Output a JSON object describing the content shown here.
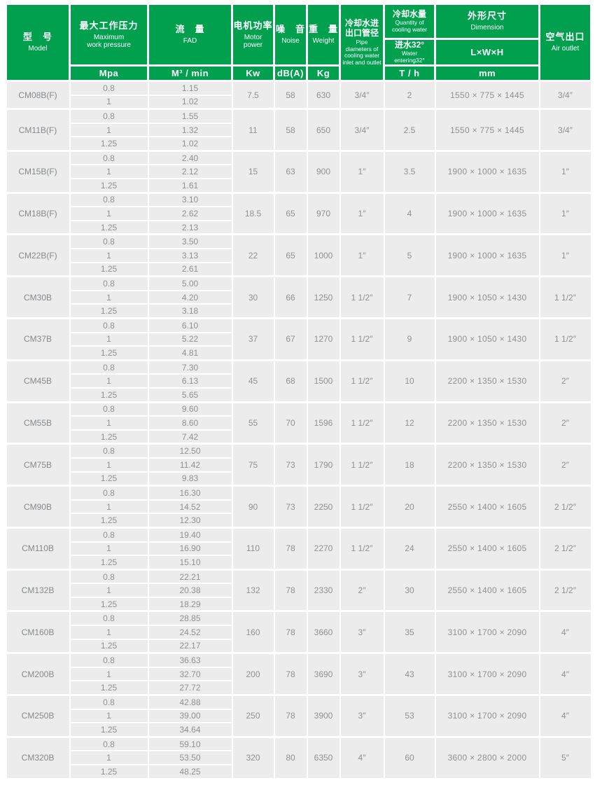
{
  "colors": {
    "header_green": "#00A04E",
    "row_background": "#ECECEC",
    "body_text": "#8E9092",
    "header_text": "#FFFFFF"
  },
  "table": {
    "header": {
      "model": {
        "zh": "型　号",
        "en": "Model"
      },
      "pressure": {
        "zh": "最大工作压力",
        "en": "Maximum\nwork pressure",
        "unit": "Mpa"
      },
      "fad": {
        "zh": "流　量",
        "en": "FAD",
        "unit": "M³ / min"
      },
      "power": {
        "zh": "电机功率",
        "en": "Motor\npower",
        "unit": "Kw"
      },
      "noise": {
        "zh": "噪　音",
        "en": "Noise",
        "unit": "dB(A)"
      },
      "weight": {
        "zh": "重　量",
        "en": "Weight",
        "unit": "Kg"
      },
      "pipe": {
        "zh": "冷却水进\n出口管径",
        "en": "Pipe\ndiameters of\ncooling water\ninlet and outlet"
      },
      "cooling": {
        "zh": "冷却水量",
        "en": "Quantity of\ncooling water",
        "mid_zh": "进水32°",
        "mid_en": "Water\nentering32°",
        "unit": "T / h"
      },
      "dimension": {
        "zh": "外形尺寸",
        "en": "Dimension",
        "mid": "L×W×H",
        "unit": "mm"
      },
      "air": {
        "zh": "空气出口",
        "en": "Air outlet"
      }
    },
    "rows": [
      {
        "model": "CM08B(F)",
        "entries": [
          {
            "pressure": "0.8",
            "fad": "1.15"
          },
          {
            "pressure": "1",
            "fad": "1.02"
          }
        ],
        "power": "7.5",
        "noise": "58",
        "weight": "630",
        "pipe": "3/4″",
        "cooling": "2",
        "dimension": "1550 × 775 × 1445",
        "air": "3/4″"
      },
      {
        "model": "CM11B(F)",
        "entries": [
          {
            "pressure": "0.8",
            "fad": "1.55"
          },
          {
            "pressure": "1",
            "fad": "1.32"
          },
          {
            "pressure": "1.25",
            "fad": "1.02"
          }
        ],
        "power": "11",
        "noise": "58",
        "weight": "650",
        "pipe": "3/4″",
        "cooling": "2.5",
        "dimension": "1550 × 775 × 1445",
        "air": "3/4″"
      },
      {
        "model": "CM15B(F)",
        "entries": [
          {
            "pressure": "0.8",
            "fad": "2.40"
          },
          {
            "pressure": "1",
            "fad": "2.12"
          },
          {
            "pressure": "1.25",
            "fad": "1.61"
          }
        ],
        "power": "15",
        "noise": "63",
        "weight": "900",
        "pipe": "1″",
        "cooling": "3.5",
        "dimension": "1900 × 1000 × 1635",
        "air": "1″"
      },
      {
        "model": "CM18B(F)",
        "entries": [
          {
            "pressure": "0.8",
            "fad": "3.10"
          },
          {
            "pressure": "1",
            "fad": "2.62"
          },
          {
            "pressure": "1.25",
            "fad": "2.13"
          }
        ],
        "power": "18.5",
        "noise": "65",
        "weight": "970",
        "pipe": "1″",
        "cooling": "4",
        "dimension": "1900 × 1000 × 1635",
        "air": "1″"
      },
      {
        "model": "CM22B(F)",
        "entries": [
          {
            "pressure": "0.8",
            "fad": "3.50"
          },
          {
            "pressure": "1",
            "fad": "3.13"
          },
          {
            "pressure": "1.25",
            "fad": "2.61"
          }
        ],
        "power": "22",
        "noise": "65",
        "weight": "1000",
        "pipe": "1″",
        "cooling": "5",
        "dimension": "1900 × 1000 × 1635",
        "air": "1″"
      },
      {
        "model": "CM30B",
        "entries": [
          {
            "pressure": "0.8",
            "fad": "5.00"
          },
          {
            "pressure": "1",
            "fad": "4.20"
          },
          {
            "pressure": "1.25",
            "fad": "3.18"
          }
        ],
        "power": "30",
        "noise": "66",
        "weight": "1250",
        "pipe": "1 1/2″",
        "cooling": "7",
        "dimension": "1900 × 1050 × 1430",
        "air": "1 1/2″"
      },
      {
        "model": "CM37B",
        "entries": [
          {
            "pressure": "0.8",
            "fad": "6.10"
          },
          {
            "pressure": "1",
            "fad": "5.22"
          },
          {
            "pressure": "1.25",
            "fad": "4.81"
          }
        ],
        "power": "37",
        "noise": "67",
        "weight": "1270",
        "pipe": "1 1/2″",
        "cooling": "9",
        "dimension": "1900 × 1050 × 1430",
        "air": "1 1/2″"
      },
      {
        "model": "CM45B",
        "entries": [
          {
            "pressure": "0.8",
            "fad": "7.30"
          },
          {
            "pressure": "1",
            "fad": "6.13"
          },
          {
            "pressure": "1.25",
            "fad": "5.65"
          }
        ],
        "power": "45",
        "noise": "68",
        "weight": "1500",
        "pipe": "1 1/2″",
        "cooling": "10",
        "dimension": "2200 × 1350 × 1530",
        "air": "2″"
      },
      {
        "model": "CM55B",
        "entries": [
          {
            "pressure": "0.8",
            "fad": "9.60"
          },
          {
            "pressure": "1",
            "fad": "8.60"
          },
          {
            "pressure": "1.25",
            "fad": "7.42"
          }
        ],
        "power": "55",
        "noise": "70",
        "weight": "1596",
        "pipe": "1 1/2″",
        "cooling": "12",
        "dimension": "2200 × 1350 × 1530",
        "air": "2″"
      },
      {
        "model": "CM75B",
        "entries": [
          {
            "pressure": "0.8",
            "fad": "12.50"
          },
          {
            "pressure": "1",
            "fad": "11.42"
          },
          {
            "pressure": "1.25",
            "fad": "9.83"
          }
        ],
        "power": "75",
        "noise": "73",
        "weight": "1790",
        "pipe": "1 1/2″",
        "cooling": "18",
        "dimension": "2200 × 1350 × 1530",
        "air": "2″"
      },
      {
        "model": "CM90B",
        "entries": [
          {
            "pressure": "0.8",
            "fad": "16.30"
          },
          {
            "pressure": "1",
            "fad": "14.52"
          },
          {
            "pressure": "1.25",
            "fad": "12.30"
          }
        ],
        "power": "90",
        "noise": "73",
        "weight": "2250",
        "pipe": "1 1/2″",
        "cooling": "20",
        "dimension": "2550 × 1400 × 1605",
        "air": "2 1/2″"
      },
      {
        "model": "CM110B",
        "entries": [
          {
            "pressure": "0.8",
            "fad": "19.40"
          },
          {
            "pressure": "1",
            "fad": "16.90"
          },
          {
            "pressure": "1.25",
            "fad": "15.10"
          }
        ],
        "power": "110",
        "noise": "78",
        "weight": "2270",
        "pipe": "1 1/2″",
        "cooling": "24",
        "dimension": "2550 × 1400 × 1605",
        "air": "2 1/2″"
      },
      {
        "model": "CM132B",
        "entries": [
          {
            "pressure": "0.8",
            "fad": "22.21"
          },
          {
            "pressure": "1",
            "fad": "20.38"
          },
          {
            "pressure": "1.25",
            "fad": "18.29"
          }
        ],
        "power": "132",
        "noise": "78",
        "weight": "2330",
        "pipe": "2″",
        "cooling": "30",
        "dimension": "2550 × 1400 × 1605",
        "air": "2 1/2″"
      },
      {
        "model": "CM160B",
        "entries": [
          {
            "pressure": "0.8",
            "fad": "28.85"
          },
          {
            "pressure": "1",
            "fad": "24.52"
          },
          {
            "pressure": "1.25",
            "fad": "22.17"
          }
        ],
        "power": "160",
        "noise": "78",
        "weight": "3660",
        "pipe": "3″",
        "cooling": "35",
        "dimension": "3100 × 1700 × 2090",
        "air": "4″"
      },
      {
        "model": "CM200B",
        "entries": [
          {
            "pressure": "0.8",
            "fad": "36.63"
          },
          {
            "pressure": "1",
            "fad": "32.70"
          },
          {
            "pressure": "1.25",
            "fad": "27.72"
          }
        ],
        "power": "200",
        "noise": "78",
        "weight": "3690",
        "pipe": "3″",
        "cooling": "43",
        "dimension": "3100 × 1700 × 2090",
        "air": "4″"
      },
      {
        "model": "CM250B",
        "entries": [
          {
            "pressure": "0.8",
            "fad": "42.88"
          },
          {
            "pressure": "1",
            "fad": "39.00"
          },
          {
            "pressure": "1.25",
            "fad": "34.64"
          }
        ],
        "power": "250",
        "noise": "78",
        "weight": "3900",
        "pipe": "3″",
        "cooling": "53",
        "dimension": "3100 × 1700 × 2090",
        "air": "4″"
      },
      {
        "model": "CM320B",
        "entries": [
          {
            "pressure": "0.8",
            "fad": "59.10"
          },
          {
            "pressure": "1",
            "fad": "53.50"
          },
          {
            "pressure": "1.25",
            "fad": "48.25"
          }
        ],
        "power": "320",
        "noise": "80",
        "weight": "6350",
        "pipe": "4″",
        "cooling": "60",
        "dimension": "3600 × 2800 × 2000",
        "air": "5″"
      }
    ]
  }
}
